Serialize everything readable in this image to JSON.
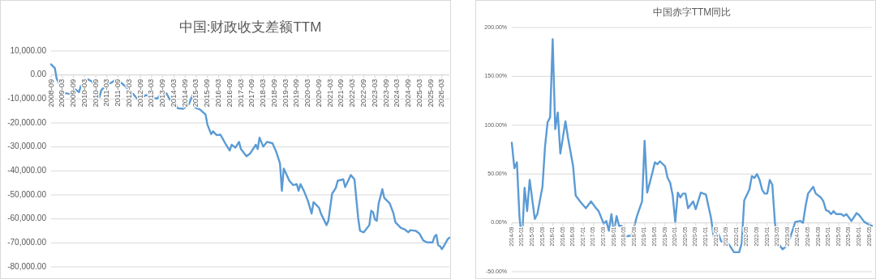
{
  "chart_data": [
    {
      "type": "line",
      "title": "中国:财政收支差额TTM",
      "grid": "y",
      "ylim": [
        -80000,
        10000
      ],
      "yticks": [
        {
          "value": 10000,
          "label": "10,000.00"
        },
        {
          "value": 0,
          "label": "0.00"
        },
        {
          "value": -10000,
          "label": "-10,000.00"
        },
        {
          "value": -20000,
          "label": "-20,000.00"
        },
        {
          "value": -30000,
          "label": "-30,000.00"
        },
        {
          "value": -40000,
          "label": "-40,000.00"
        },
        {
          "value": -50000,
          "label": "-50,000.00"
        },
        {
          "value": -60000,
          "label": "-60,000.00"
        },
        {
          "value": -70000,
          "label": "-70,000.00"
        },
        {
          "value": -80000,
          "label": "-80,000.00"
        }
      ],
      "xlim": [
        "2008-09",
        "2026-07"
      ],
      "xticks": [
        "2008-09",
        "2009-03",
        "2009-09",
        "2010-03",
        "2010-09",
        "2011-03",
        "2011-09",
        "2012-03",
        "2012-09",
        "2013-03",
        "2013-09",
        "2014-03",
        "2014-09",
        "2015-03",
        "2015-09",
        "2016-03",
        "2016-09",
        "2017-03",
        "2017-09",
        "2018-03",
        "2018-09",
        "2019-03",
        "2019-09",
        "2020-03",
        "2020-09",
        "2021-03",
        "2021-09",
        "2022-03",
        "2022-09",
        "2023-03",
        "2023-09",
        "2024-03",
        "2024-09",
        "2025-03",
        "2025-09",
        "2026-03"
      ],
      "series": [
        {
          "color": "#5b9bd5",
          "x": [
            "2008-09",
            "2008-11",
            "2008-12",
            "2009-02",
            "2009-04",
            "2009-07",
            "2009-09",
            "2009-10",
            "2009-12",
            "2010-01",
            "2010-04",
            "2010-05",
            "2010-07",
            "2010-08",
            "2010-11",
            "2010-12",
            "2011-03",
            "2011-05",
            "2011-08",
            "2011-10",
            "2012-01",
            "2012-03",
            "2012-05",
            "2012-08",
            "2012-12",
            "2013-03",
            "2013-06",
            "2013-08",
            "2013-11",
            "2014-01",
            "2014-03",
            "2014-05",
            "2014-08",
            "2014-11",
            "2015-01",
            "2015-02",
            "2015-05",
            "2015-08",
            "2015-09",
            "2015-11",
            "2015-12",
            "2016-02",
            "2016-04",
            "2016-07",
            "2016-09",
            "2016-10",
            "2016-12",
            "2017-02",
            "2017-03",
            "2017-06",
            "2017-08",
            "2017-11",
            "2017-12",
            "2018-01",
            "2018-03",
            "2018-05",
            "2018-08",
            "2018-10",
            "2018-12",
            "2019-01",
            "2019-02",
            "2019-05",
            "2019-07",
            "2019-09",
            "2019-10",
            "2019-11",
            "2020-01",
            "2020-03",
            "2020-05",
            "2020-06",
            "2020-09",
            "2020-10",
            "2021-01",
            "2021-02",
            "2021-04",
            "2021-06",
            "2021-07",
            "2021-10",
            "2021-11",
            "2022-01",
            "2022-02",
            "2022-04",
            "2022-06",
            "2022-07",
            "2022-09",
            "2022-12",
            "2023-01",
            "2023-02",
            "2023-03",
            "2023-04",
            "2023-05",
            "2023-07",
            "2023-08",
            "2023-11",
            "2024-01",
            "2024-02",
            "2024-05",
            "2024-07",
            "2024-09",
            "2024-10",
            "2025-01",
            "2025-03",
            "2025-05",
            "2025-07",
            "2025-10",
            "2025-11",
            "2025-12",
            "2026-01",
            "2026-02",
            "2026-03",
            "2026-04",
            "2026-06",
            "2026-07"
          ],
          "values": [
            4400,
            2900,
            -1600,
            -4500,
            -7500,
            -7900,
            -7200,
            -6000,
            -7200,
            -4500,
            -2400,
            -1900,
            -2800,
            -4000,
            -9300,
            -6300,
            -4000,
            -3400,
            -1900,
            -2800,
            -4800,
            -6300,
            -7900,
            -10500,
            -8400,
            -9300,
            -9900,
            -7900,
            -7700,
            -10500,
            -9900,
            -13900,
            -14100,
            -12300,
            -8400,
            -13500,
            -14400,
            -16500,
            -20700,
            -24700,
            -23500,
            -25100,
            -24900,
            -29100,
            -31500,
            -29100,
            -30300,
            -27900,
            -30900,
            -33900,
            -32700,
            -29100,
            -30900,
            -26100,
            -29900,
            -27900,
            -28500,
            -32100,
            -36900,
            -48300,
            -39000,
            -44100,
            -45900,
            -45500,
            -48300,
            -45500,
            -48600,
            -52500,
            -57800,
            -53000,
            -55400,
            -57800,
            -62600,
            -60800,
            -49500,
            -47100,
            -44100,
            -43500,
            -46700,
            -43500,
            -41700,
            -43500,
            -59600,
            -65000,
            -65600,
            -62600,
            -56600,
            -57200,
            -60200,
            -60800,
            -53600,
            -47600,
            -51200,
            -53600,
            -57800,
            -61400,
            -63800,
            -64400,
            -65600,
            -64700,
            -65000,
            -66200,
            -69000,
            -69800,
            -69800,
            -67400,
            -66600,
            -71000,
            -71400,
            -72600,
            -71400,
            -68600,
            -67800
          ]
        }
      ]
    },
    {
      "type": "line",
      "title": "中国赤字TTM同比",
      "grid": "y",
      "ylim": [
        -50,
        200
      ],
      "yticks": [
        {
          "value": 200,
          "label": "200.00%"
        },
        {
          "value": 150,
          "label": "150.00%"
        },
        {
          "value": 100,
          "label": "100.00%"
        },
        {
          "value": 50,
          "label": "50.00%"
        },
        {
          "value": 0,
          "label": "0.00%"
        },
        {
          "value": -50,
          "label": "-50.00%"
        }
      ],
      "xlim": [
        "2014-09",
        "2026-06"
      ],
      "xticks": [
        "2014-09",
        "2015-01",
        "2015-05",
        "2015-09",
        "2016-01",
        "2016-05",
        "2016-09",
        "2017-01",
        "2017-05",
        "2017-09",
        "2018-01",
        "2018-05",
        "2018-09",
        "2019-01",
        "2019-05",
        "2019-09",
        "2020-01",
        "2020-05",
        "2020-09",
        "2021-01",
        "2021-05",
        "2021-09",
        "2022-01",
        "2022-05",
        "2022-09",
        "2023-01",
        "2023-05",
        "2023-09",
        "2024-01",
        "2024-05",
        "2024-09",
        "2025-01",
        "2025-05",
        "2025-09",
        "2026-01",
        "2026-05"
      ],
      "series": [
        {
          "color": "#5b9bd5",
          "x": [
            "2014-09",
            "2014-10",
            "2014-11",
            "2014-12",
            "2015-01",
            "2015-02",
            "2015-03",
            "2015-04",
            "2015-06",
            "2015-07",
            "2015-09",
            "2015-10",
            "2015-11",
            "2015-12",
            "2016-01",
            "2016-02",
            "2016-03",
            "2016-04",
            "2016-06",
            "2016-07",
            "2016-09",
            "2016-10",
            "2016-12",
            "2017-02",
            "2017-04",
            "2017-06",
            "2017-07",
            "2017-09",
            "2017-10",
            "2017-11",
            "2017-12",
            "2018-01",
            "2018-02",
            "2018-03",
            "2018-04",
            "2018-05",
            "2018-08",
            "2018-10",
            "2018-12",
            "2019-01",
            "2019-02",
            "2019-04",
            "2019-05",
            "2019-06",
            "2019-07",
            "2019-09",
            "2019-10",
            "2019-11",
            "2019-12",
            "2020-01",
            "2020-02",
            "2020-03",
            "2020-04",
            "2020-05",
            "2020-06",
            "2020-08",
            "2020-09",
            "2020-11",
            "2021-01",
            "2021-03",
            "2021-04",
            "2021-05",
            "2021-06",
            "2021-07",
            "2021-09",
            "2021-10",
            "2021-12",
            "2022-02",
            "2022-03",
            "2022-04",
            "2022-06",
            "2022-07",
            "2022-08",
            "2022-09",
            "2022-10",
            "2022-11",
            "2022-12",
            "2023-01",
            "2023-02",
            "2023-03",
            "2023-04",
            "2023-05",
            "2023-07",
            "2023-09",
            "2023-10",
            "2023-12",
            "2024-02",
            "2024-03",
            "2024-04",
            "2024-05",
            "2024-07",
            "2024-08",
            "2024-10",
            "2024-11",
            "2024-12",
            "2025-01",
            "2025-02",
            "2025-03",
            "2025-04",
            "2025-06",
            "2025-07",
            "2025-08",
            "2025-10",
            "2025-12",
            "2026-01",
            "2026-03",
            "2026-05",
            "2026-06"
          ],
          "values": [
            82,
            56,
            62,
            6,
            -18,
            36,
            12,
            44,
            4,
            9,
            37,
            78,
            103,
            108,
            188,
            96,
            113,
            71,
            104,
            87,
            58,
            28,
            21,
            15,
            22,
            15,
            12,
            -1,
            2,
            -8,
            9,
            -10,
            7,
            -3,
            -3,
            -14,
            -13,
            7,
            22,
            84,
            31,
            51,
            62,
            60,
            63,
            58,
            46,
            41,
            28,
            1,
            31,
            26,
            30,
            30,
            15,
            22,
            14,
            31,
            29,
            5,
            -14,
            -16,
            -12,
            -19,
            -20,
            -22,
            -30,
            -30,
            -21,
            23,
            34,
            48,
            46,
            50,
            44,
            34,
            30,
            30,
            44,
            39,
            1,
            -20,
            -27,
            -23,
            -15,
            1,
            2,
            0,
            17,
            30,
            37,
            30,
            26,
            22,
            13,
            12,
            9,
            12,
            9,
            9,
            7,
            9,
            2,
            10,
            8,
            1,
            -2,
            -3
          ]
        }
      ]
    }
  ]
}
